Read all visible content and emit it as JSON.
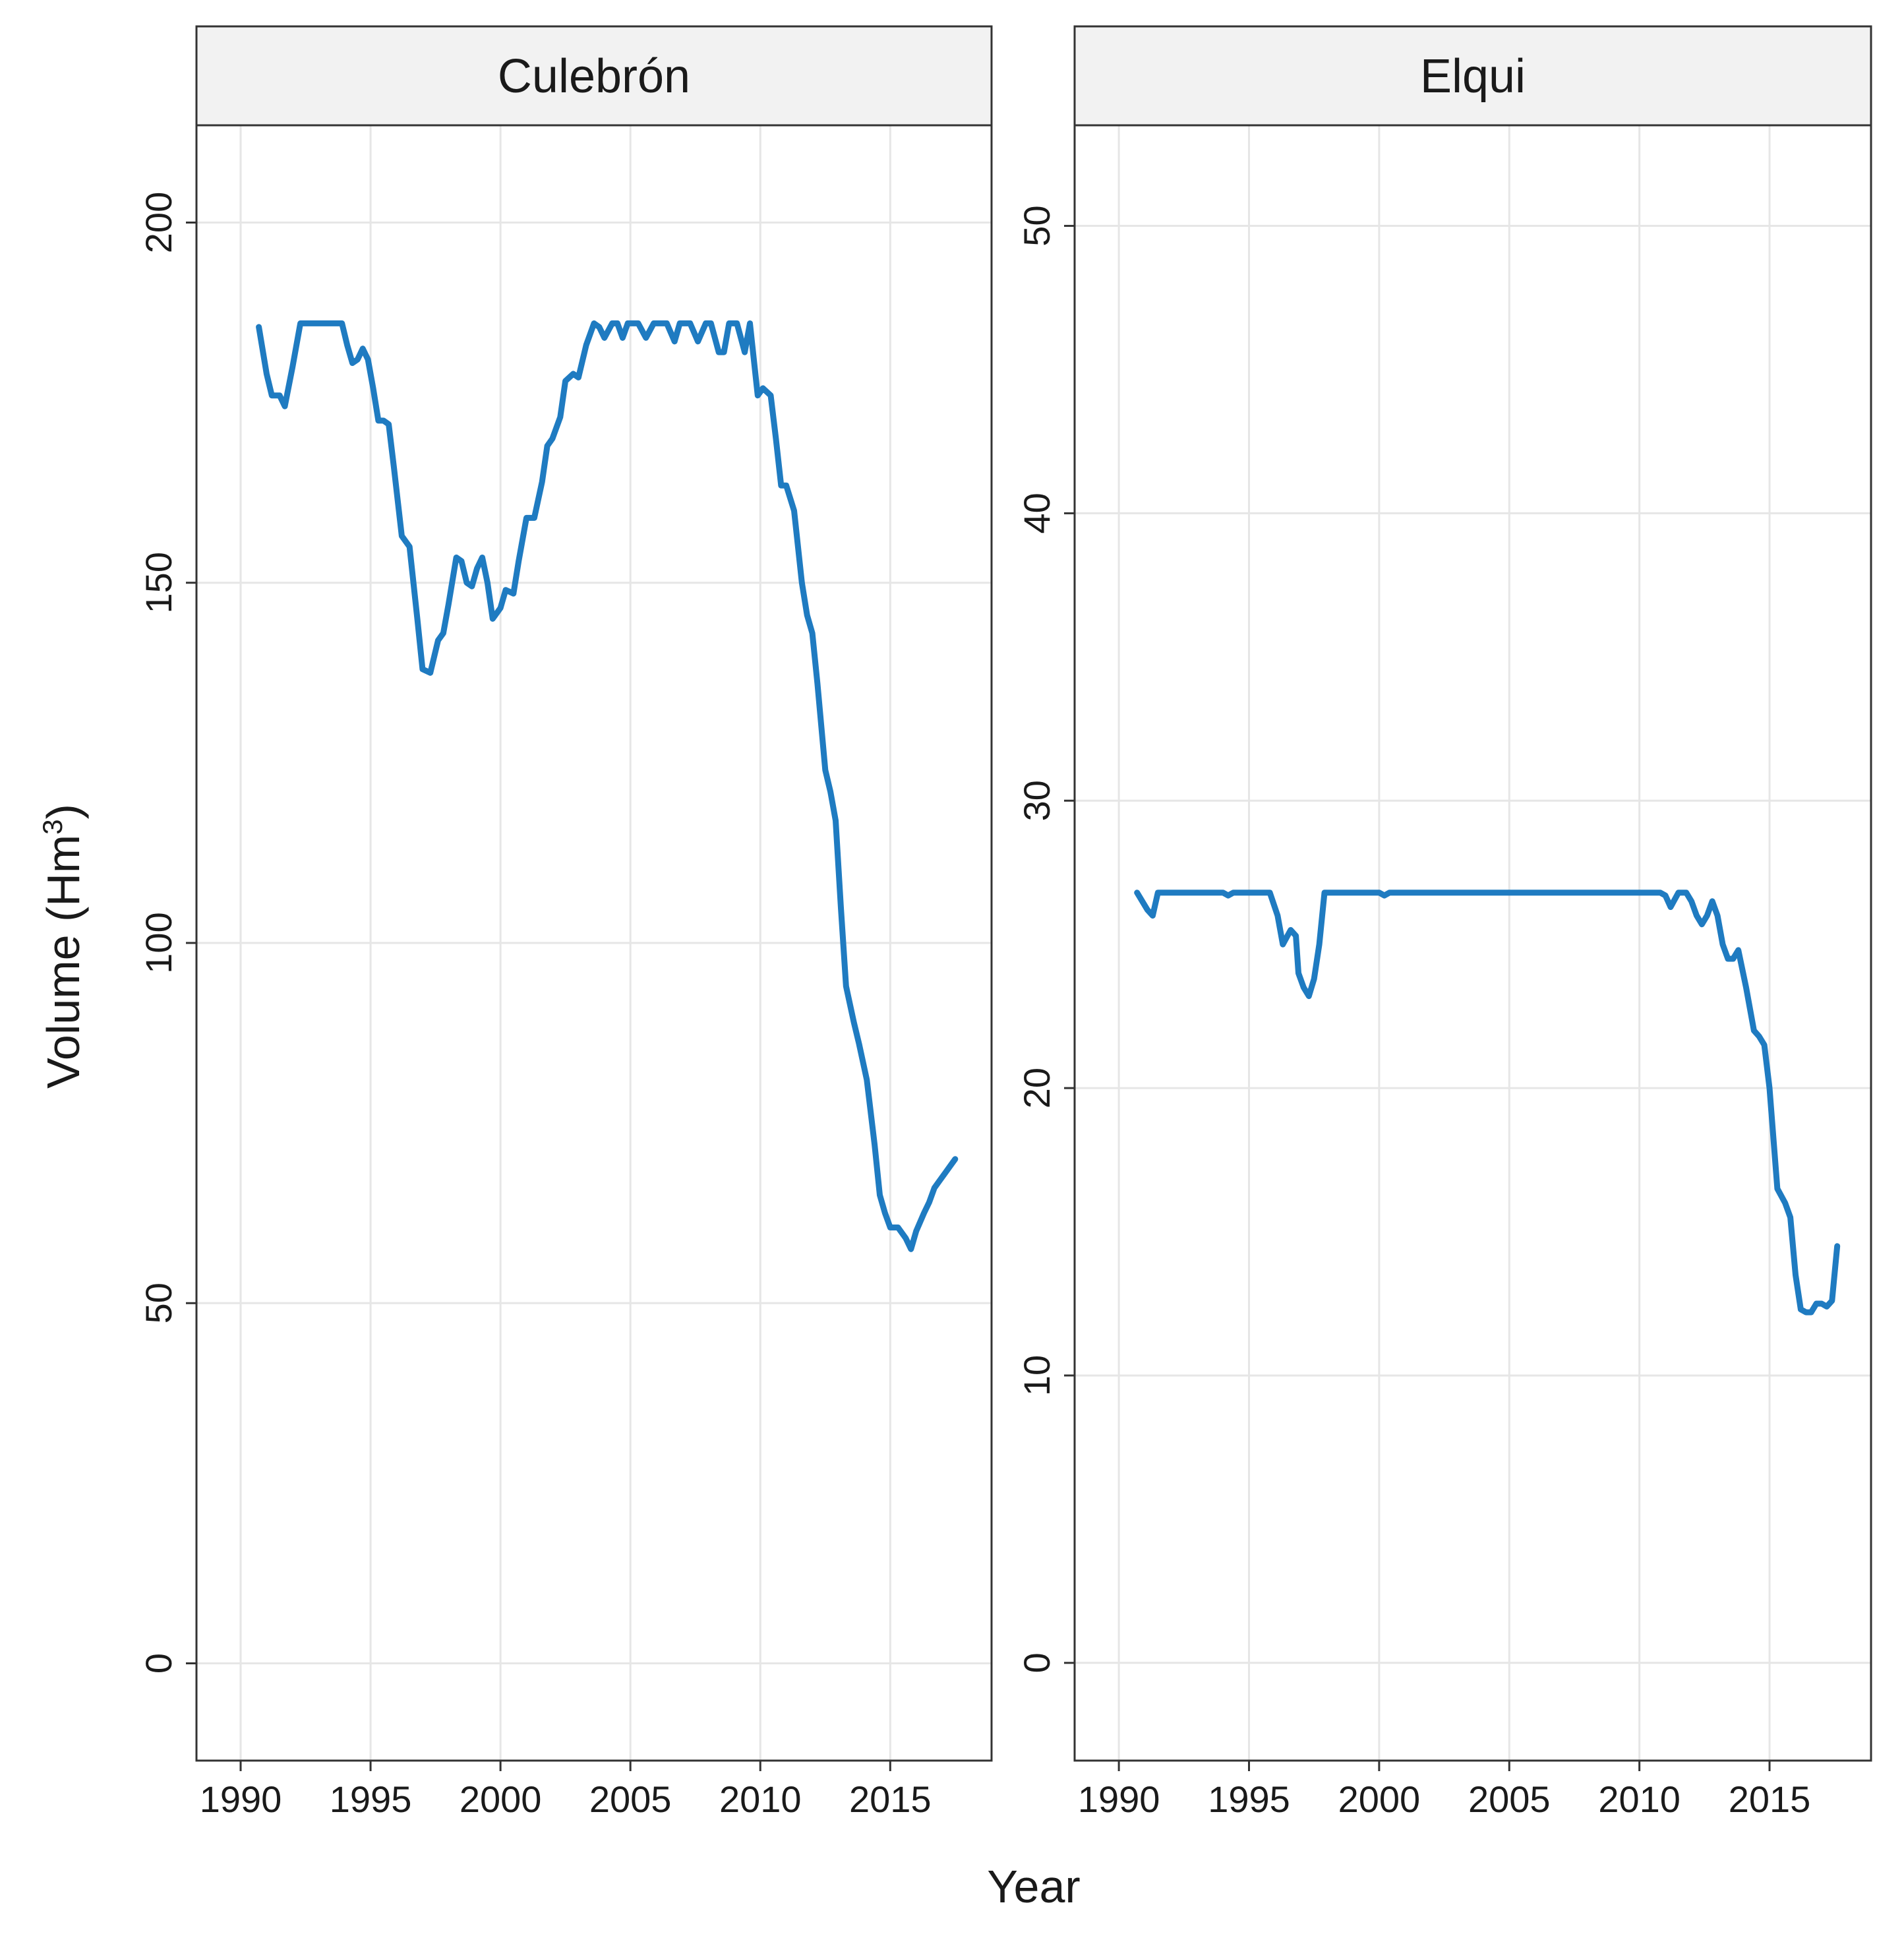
{
  "chart_data": [
    {
      "type": "line",
      "facet": "Culebrón",
      "xlabel": "Year",
      "ylabel": "Volume (Hm3)",
      "xlim": [
        1988.3,
        2018.9
      ],
      "ylim": [
        -13.5,
        213.5
      ],
      "xticks": [
        1990,
        1995,
        2000,
        2005,
        2010,
        2015
      ],
      "xtick_labels": [
        "1990",
        "1995",
        "2000",
        "2005",
        "2010",
        "2015"
      ],
      "yticks": [
        0,
        50,
        100,
        150,
        200
      ],
      "ytick_labels": [
        "0",
        "50",
        "100",
        "150",
        "200"
      ],
      "grid": true,
      "series": [
        {
          "color": "#1f7bc1",
          "x": [
            1990.7,
            1991.0,
            1991.2,
            1991.5,
            1991.7,
            1992.0,
            1992.3,
            1992.7,
            1993.0,
            1993.5,
            1993.9,
            1994.1,
            1994.3,
            1994.5,
            1994.7,
            1994.9,
            1995.1,
            1995.3,
            1995.5,
            1995.7,
            1995.9,
            1996.2,
            1996.5,
            1996.8,
            1997.0,
            1997.3,
            1997.6,
            1997.8,
            1998.0,
            1998.3,
            1998.5,
            1998.7,
            1998.9,
            1999.1,
            1999.3,
            1999.5,
            1999.7,
            2000.0,
            2000.2,
            2000.5,
            2000.7,
            2001.0,
            2001.3,
            2001.6,
            2001.8,
            2002.0,
            2002.3,
            2002.5,
            2002.8,
            2003.0,
            2003.3,
            2003.6,
            2003.8,
            2004.0,
            2004.3,
            2004.5,
            2004.7,
            2004.9,
            2005.1,
            2005.3,
            2005.6,
            2005.9,
            2006.1,
            2006.4,
            2006.7,
            2006.9,
            2007.1,
            2007.3,
            2007.6,
            2007.9,
            2008.1,
            2008.4,
            2008.6,
            2008.8,
            2009.1,
            2009.4,
            2009.6,
            2009.9,
            2010.1,
            2010.4,
            2010.6,
            2010.8,
            2011.0,
            2011.3,
            2011.6,
            2011.8,
            2012.0,
            2012.2,
            2012.5,
            2012.7,
            2012.9,
            2013.1,
            2013.3,
            2013.6,
            2013.8,
            2014.1,
            2014.4,
            2014.6,
            2014.8,
            2015.0,
            2015.3,
            2015.6,
            2015.8,
            2016.0,
            2016.3,
            2016.5,
            2016.7,
            2016.9,
            2017.1,
            2017.3,
            2017.5
          ],
          "y": [
            185.5,
            179,
            176,
            176,
            174.5,
            180,
            186,
            186,
            186,
            186,
            186,
            183,
            180.5,
            181,
            182.5,
            181,
            177,
            172.5,
            172.5,
            172,
            166,
            156.5,
            155,
            145,
            138,
            137.5,
            142,
            143,
            147,
            153.5,
            153,
            150,
            149.5,
            152,
            153.5,
            150,
            145,
            146.5,
            149,
            148.5,
            153,
            159,
            159,
            164,
            169,
            170,
            173,
            178,
            179,
            178.5,
            183,
            186,
            185.5,
            184,
            186,
            186,
            184,
            186,
            186,
            186,
            184,
            186,
            186,
            186,
            183.5,
            186,
            186,
            186,
            183.5,
            186,
            186,
            182,
            182,
            186,
            186,
            182,
            186,
            176,
            177,
            176,
            170,
            163.5,
            163.5,
            160,
            150,
            145.5,
            143,
            136,
            124,
            121,
            117,
            105,
            94,
            89,
            86,
            81,
            72,
            65,
            62.5,
            60.5,
            60.5,
            59,
            57.5,
            60,
            62.5,
            64,
            66,
            67,
            68,
            69,
            70
          ]
        }
      ]
    },
    {
      "type": "line",
      "facet": "Elqui",
      "xlabel": "Year",
      "ylabel": "Volume (Hm3)",
      "xlim": [
        1988.3,
        2018.9
      ],
      "ylim": [
        -3.4,
        53.5
      ],
      "xticks": [
        1990,
        1995,
        2000,
        2005,
        2010,
        2015
      ],
      "xtick_labels": [
        "1990",
        "1995",
        "2000",
        "2005",
        "2010",
        "2015"
      ],
      "yticks": [
        0,
        10,
        20,
        30,
        40,
        50
      ],
      "ytick_labels": [
        "0",
        "10",
        "20",
        "30",
        "40",
        "50"
      ],
      "grid": true,
      "series": [
        {
          "color": "#1f7bc1",
          "x": [
            1990.7,
            1990.9,
            1991.1,
            1991.3,
            1991.5,
            1993.5,
            1994.0,
            1994.2,
            1994.4,
            1995.0,
            1995.3,
            1995.5,
            1995.8,
            1996.1,
            1996.3,
            1996.6,
            1996.8,
            1996.9,
            1997.1,
            1997.3,
            1997.5,
            1997.7,
            1997.9,
            2000.0,
            2000.2,
            2000.4,
            2010.8,
            2011.0,
            2011.2,
            2011.5,
            2011.8,
            2012.0,
            2012.2,
            2012.4,
            2012.6,
            2012.8,
            2013.0,
            2013.2,
            2013.4,
            2013.6,
            2013.8,
            2014.1,
            2014.4,
            2014.6,
            2014.8,
            2015.0,
            2015.3,
            2015.6,
            2015.8,
            2016.0,
            2016.2,
            2016.4,
            2016.6,
            2016.8,
            2017.0,
            2017.2,
            2017.4,
            2017.6
          ],
          "y": [
            26.8,
            26.5,
            26.2,
            26.0,
            26.8,
            26.8,
            26.8,
            26.7,
            26.8,
            26.8,
            26.8,
            26.8,
            26.8,
            26.0,
            25.0,
            25.5,
            25.3,
            24.0,
            23.5,
            23.2,
            23.8,
            25.0,
            26.8,
            26.8,
            26.7,
            26.8,
            26.8,
            26.7,
            26.3,
            26.8,
            26.8,
            26.5,
            26.0,
            25.7,
            26.0,
            26.5,
            26.0,
            25.0,
            24.5,
            24.5,
            24.8,
            23.5,
            22.0,
            21.8,
            21.5,
            20.0,
            16.5,
            16.0,
            15.5,
            13.5,
            12.3,
            12.2,
            12.2,
            12.5,
            12.5,
            12.4,
            12.6,
            14.5
          ]
        }
      ]
    }
  ],
  "labels": {
    "facet_left": "Culebrón",
    "facet_right": "Elqui",
    "xlabel": "Year",
    "ylabel_main": "Volume (Hm",
    "ylabel_sup": "3",
    "ylabel_end": ")"
  }
}
